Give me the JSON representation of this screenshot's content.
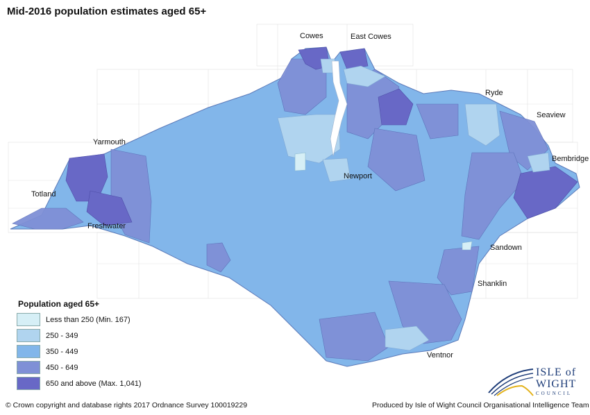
{
  "title": "Mid-2016 population estimates aged 65+",
  "places": [
    "Cowes",
    "East Cowes",
    "Yarmouth",
    "Ryde",
    "Seaview",
    "Bembridge",
    "Newport",
    "Totland",
    "Freshwater",
    "Sandown",
    "Shanklin",
    "Ventnor"
  ],
  "legend": {
    "title": "Population aged 65+",
    "items": [
      {
        "label": "Less than 250 (Min. 167)",
        "color": "#d6eff6"
      },
      {
        "label": "250 - 349",
        "color": "#b0d4ef"
      },
      {
        "label": "350 - 449",
        "color": "#82b6ea"
      },
      {
        "label": "450 - 649",
        "color": "#7f90d6"
      },
      {
        "label": "650 and above (Max. 1,041)",
        "color": "#6868c6"
      }
    ]
  },
  "footer": {
    "copyright": "© Crown copyright and database rights 2017 Ordnance Survey 100019229",
    "credit": "Produced by Isle of Wight Council Organisational Intelligence Team"
  },
  "logo": {
    "line1": "ISLE of",
    "line2": "WIGHT",
    "line3": "COUNCIL"
  }
}
